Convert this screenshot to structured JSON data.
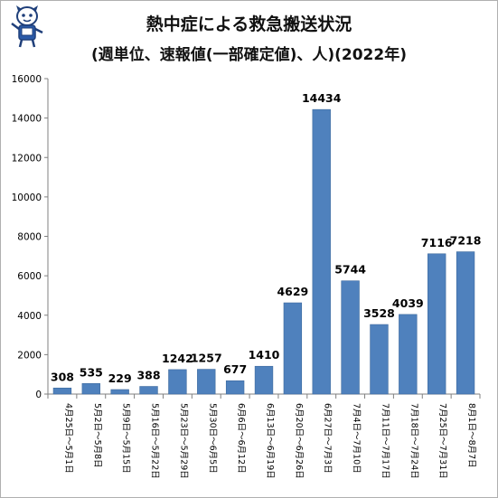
{
  "chart_data": {
    "type": "bar",
    "title": "熱中症による救急搬送状況",
    "subtitle": "(週単位、速報値(一部確定値)、人)(2022年)",
    "categories": [
      "4月25日～5月1日",
      "5月2日～5月8日",
      "5月9日～5月15日",
      "5月16日～5月22日",
      "5月23日～5月29日",
      "5月30日～6月5日",
      "6月6日～6月12日",
      "6月13日～6月19日",
      "6月20日～6月26日",
      "6月27日～7月3日",
      "7月4日～7月10日",
      "7月11日～7月17日",
      "7月18日～7月24日",
      "7月25日～7月31日",
      "8月1日～8月7日"
    ],
    "values": [
      308,
      535,
      229,
      388,
      1242,
      1257,
      677,
      1410,
      4629,
      14434,
      5744,
      3528,
      4039,
      7116,
      7218
    ],
    "data_labels": [
      "308",
      "535",
      "229",
      "388",
      "1242",
      "1257",
      "677",
      "1410",
      "4629",
      "14434",
      "5744",
      "3528",
      "4039",
      "7116",
      "7218"
    ],
    "ylim": [
      0,
      16000
    ],
    "yticks": [
      0,
      2000,
      4000,
      6000,
      8000,
      10000,
      12000,
      14000,
      16000
    ],
    "ytick_labels": [
      "0",
      "2000",
      "4000",
      "6000",
      "8000",
      "10000",
      "12000",
      "14000",
      "16000"
    ],
    "grid": false,
    "bar_color": "#4f81bd"
  },
  "mascot": {
    "icon": "mascot-character-icon"
  }
}
